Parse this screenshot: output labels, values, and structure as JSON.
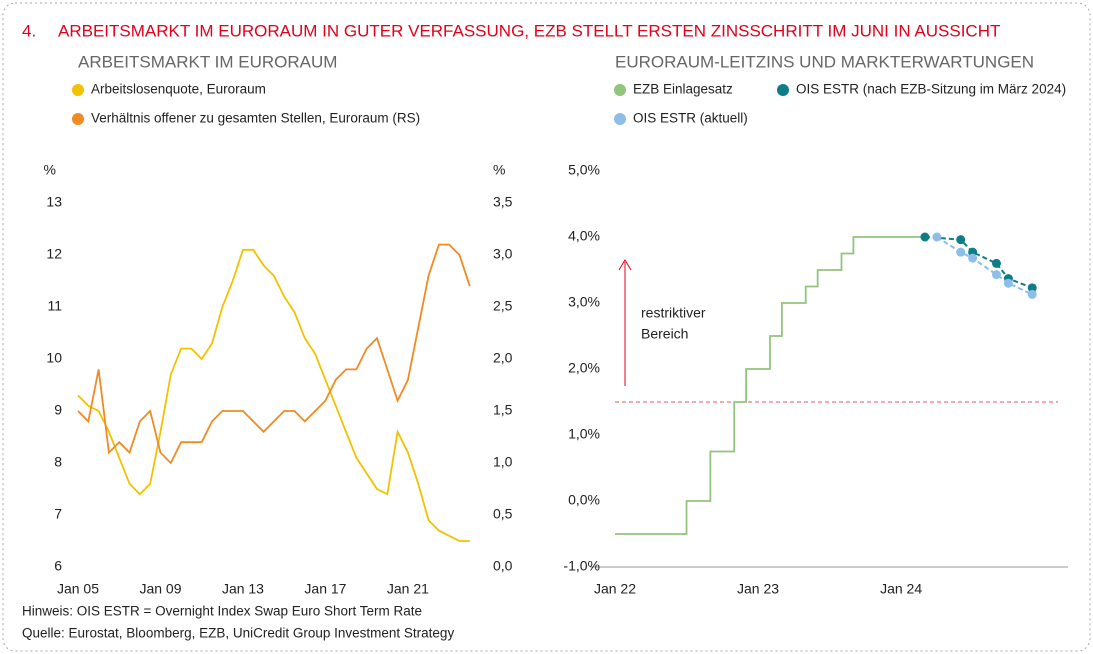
{
  "header": {
    "number": "4.",
    "title": "ARBEITSMARKT IM EURORAUM IN GUTER VERFASSUNG, EZB STELLT ERSTEN ZINSSCHRITT IM JUNI IN AUSSICHT"
  },
  "chart_data": [
    {
      "type": "line",
      "title": "ARBEITSMARKT IM EURORAUM",
      "x": [
        "2005-01",
        "2005-07",
        "2006-01",
        "2006-07",
        "2007-01",
        "2007-07",
        "2008-01",
        "2008-07",
        "2009-01",
        "2009-07",
        "2010-01",
        "2010-07",
        "2011-01",
        "2011-07",
        "2012-01",
        "2012-07",
        "2013-01",
        "2013-07",
        "2014-01",
        "2014-07",
        "2015-01",
        "2015-07",
        "2016-01",
        "2016-07",
        "2017-01",
        "2017-07",
        "2018-01",
        "2018-07",
        "2019-01",
        "2019-07",
        "2020-01",
        "2020-07",
        "2021-01",
        "2021-07",
        "2022-01",
        "2022-07",
        "2023-01",
        "2023-07",
        "2024-01"
      ],
      "series": [
        {
          "name": "Arbeitslosenquote, Euroraum",
          "color": "#f2c200",
          "axis": "y",
          "values": [
            9.3,
            9.1,
            9.0,
            8.6,
            8.1,
            7.6,
            7.4,
            7.6,
            8.6,
            9.7,
            10.2,
            10.2,
            10.0,
            10.3,
            11.0,
            11.5,
            12.1,
            12.1,
            11.8,
            11.6,
            11.2,
            10.9,
            10.4,
            10.1,
            9.6,
            9.1,
            8.6,
            8.1,
            7.8,
            7.5,
            7.4,
            8.6,
            8.2,
            7.6,
            6.9,
            6.7,
            6.6,
            6.5,
            6.5
          ]
        },
        {
          "name": "Verhältnis offener zu gesamten Stellen, Euroraum (RS)",
          "color": "#f08a24",
          "axis": "y2",
          "values": [
            1.5,
            1.4,
            1.9,
            1.1,
            1.2,
            1.1,
            1.4,
            1.5,
            1.1,
            1.0,
            1.2,
            1.2,
            1.2,
            1.4,
            1.5,
            1.5,
            1.5,
            1.4,
            1.3,
            1.4,
            1.5,
            1.5,
            1.4,
            1.5,
            1.6,
            1.8,
            1.9,
            1.9,
            2.1,
            2.2,
            1.9,
            1.6,
            1.8,
            2.3,
            2.8,
            3.1,
            3.1,
            3.0,
            2.7
          ]
        }
      ],
      "xlim": [
        "2005-01",
        "2025-06"
      ],
      "xticks": [
        {
          "value": "2005-01",
          "label": "Jan 05"
        },
        {
          "value": "2009-01",
          "label": "Jan 09"
        },
        {
          "value": "2013-01",
          "label": "Jan 13"
        },
        {
          "value": "2017-01",
          "label": "Jan 17"
        },
        {
          "value": "2021-01",
          "label": "Jan 21"
        }
      ],
      "ylabel": "%",
      "ylim": [
        6,
        13
      ],
      "yticks": [
        6,
        7,
        8,
        9,
        10,
        11,
        12,
        13
      ],
      "y2label": "%",
      "y2lim": [
        0,
        3.5
      ],
      "y2ticks": [
        {
          "value": 0,
          "label": "0,0"
        },
        {
          "value": 0.5,
          "label": "0,5"
        },
        {
          "value": 1,
          "label": "1,0"
        },
        {
          "value": 1.5,
          "label": "1,5"
        },
        {
          "value": 2,
          "label": "2,0"
        },
        {
          "value": 2.5,
          "label": "2,5"
        },
        {
          "value": 3,
          "label": "3,0"
        },
        {
          "value": 3.5,
          "label": "3,5"
        }
      ]
    },
    {
      "type": "line",
      "title": "EURORAUM-LEITZINS UND MARKTERWARTUNGEN",
      "series": [
        {
          "name": "EZB Einlagesatz",
          "color": "#92c47c",
          "step": true,
          "x": [
            "2022-01",
            "2022-02",
            "2022-03",
            "2022-04",
            "2022-05",
            "2022-06",
            "2022-07",
            "2022-08",
            "2022-09",
            "2022-10",
            "2022-11",
            "2022-12",
            "2023-01",
            "2023-02",
            "2023-03",
            "2023-04",
            "2023-05",
            "2023-06",
            "2023-07",
            "2023-08",
            "2023-09",
            "2023-10",
            "2023-11",
            "2023-12",
            "2024-01",
            "2024-02",
            "2024-03"
          ],
          "values": [
            -0.5,
            -0.5,
            -0.5,
            -0.5,
            -0.5,
            -0.5,
            0,
            0,
            0.75,
            0.75,
            1.5,
            2.0,
            2.0,
            2.5,
            3.0,
            3.0,
            3.25,
            3.5,
            3.5,
            3.75,
            4.0,
            4.0,
            4.0,
            4.0,
            4.0,
            4.0,
            4.0
          ]
        },
        {
          "name": "OIS ESTR (nach EZB-Sitzung im März 2024)",
          "color": "#0e7d8a",
          "dashed": true,
          "markers": true,
          "x": [
            "2024-03",
            "2024-06",
            "2024-07",
            "2024-09",
            "2024-10",
            "2024-12"
          ],
          "values": [
            4.0,
            3.96,
            3.77,
            3.6,
            3.37,
            3.23
          ]
        },
        {
          "name": "OIS ESTR (aktuell)",
          "color": "#8dbde8",
          "dashed": true,
          "markers": true,
          "x": [
            "2024-04",
            "2024-06",
            "2024-07",
            "2024-09",
            "2024-10",
            "2024-12"
          ],
          "values": [
            4.0,
            3.77,
            3.68,
            3.43,
            3.3,
            3.13
          ]
        }
      ],
      "xlim": [
        "2022-01",
        "2025-03"
      ],
      "xticks": [
        {
          "value": "2022-01",
          "label": "Jan 22"
        },
        {
          "value": "2023-01",
          "label": "Jan 23"
        },
        {
          "value": "2024-01",
          "label": "Jan 24"
        }
      ],
      "ylim": [
        -1,
        5
      ],
      "yticks": [
        {
          "value": -1,
          "label": "-1,0%"
        },
        {
          "value": 0,
          "label": "0,0%"
        },
        {
          "value": 1,
          "label": "1,0%"
        },
        {
          "value": 2,
          "label": "2,0%"
        },
        {
          "value": 3,
          "label": "3,0%"
        },
        {
          "value": 4,
          "label": "4,0%"
        },
        {
          "value": 5,
          "label": "5,0%"
        }
      ],
      "reference_line": {
        "value": 1.5,
        "color": "#e8575a"
      },
      "annotation": [
        "restriktiver",
        "Bereich"
      ]
    }
  ],
  "footer": {
    "note": "Hinweis: OIS ESTR = Overnight Index Swap Euro Short Term Rate",
    "source": "Quelle: Eurostat, Bloomberg, EZB, UniCredit Group Investment Strategy"
  }
}
